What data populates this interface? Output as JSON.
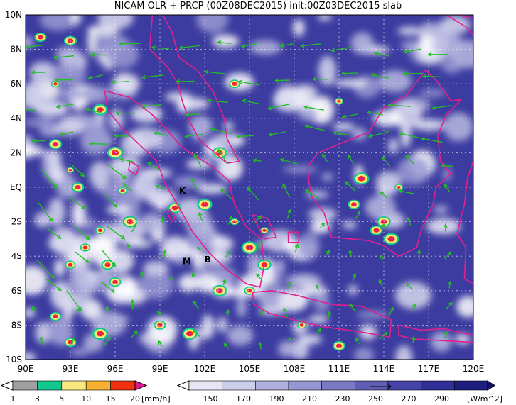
{
  "title": "NICAM OLR + PRCP (00Z08DEC2015) init:00Z03DEC2015 slab",
  "lat_ticks": [
    "10N",
    "8N",
    "6N",
    "4N",
    "2N",
    "EQ",
    "2S",
    "4S",
    "6S",
    "8S",
    "10S"
  ],
  "lon_ticks": [
    "90E",
    "93E",
    "96E",
    "99E",
    "102E",
    "105E",
    "108E",
    "111E",
    "114E",
    "117E",
    "120E"
  ],
  "markers": [
    {
      "label": "K",
      "lon": 100.5,
      "lat": -0.2
    },
    {
      "label": "M",
      "lon": 100.8,
      "lat": -4.3
    },
    {
      "label": "B",
      "lon": 102.2,
      "lat": -4.2
    }
  ],
  "precip_colorbar": {
    "ticks": [
      "1",
      "3",
      "5",
      "10",
      "15",
      "20"
    ],
    "unit": "[mm/h]",
    "colors": [
      "#a0a0a0",
      "#10c890",
      "#f8e880",
      "#f8b030",
      "#f03010",
      "#e01890"
    ]
  },
  "olr_colorbar": {
    "ticks": [
      "150",
      "170",
      "190",
      "210",
      "230",
      "250",
      "270",
      "290"
    ],
    "unit": "[W/m^2]",
    "colors": [
      "#ffffff",
      "#e6e6f4",
      "#cccceb",
      "#b0b0de",
      "#9696d2",
      "#7a7ac4",
      "#5e5eb6",
      "#4444a8",
      "#2e2e96",
      "#1e1e80",
      "#121268"
    ]
  },
  "colors": {
    "coastline": "#e0208c",
    "wind_vector": "#20c020",
    "ocean_olr": "#3c3ca0"
  }
}
